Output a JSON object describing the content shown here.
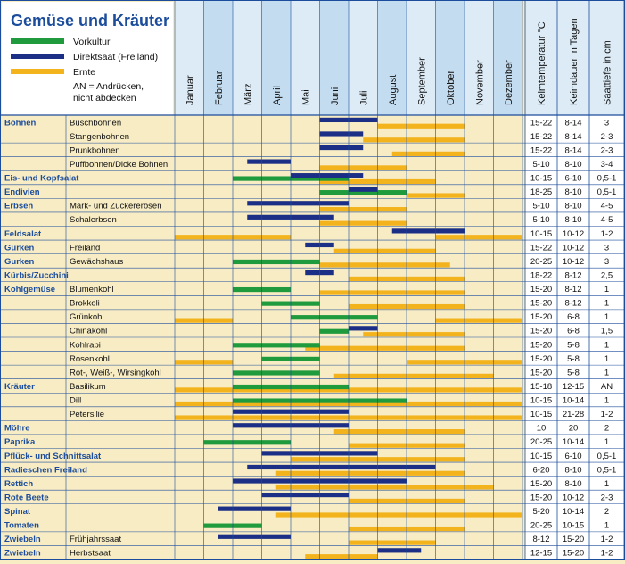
{
  "chart_data": {
    "type": "gantt",
    "title": "Gemüse und Kräuter",
    "legend": [
      {
        "key": "vor",
        "label": "Vorkultur",
        "color": "#1f9a3c"
      },
      {
        "key": "dir",
        "label": "Direktsaat (Freiland)",
        "color": "#1c2f86"
      },
      {
        "key": "ern",
        "label": "Ernte",
        "color": "#f3b31c"
      }
    ],
    "legend_note": [
      "AN = Andrücken,",
      "nicht abdecken"
    ],
    "months": [
      "Januar",
      "Februar",
      "März",
      "April",
      "Mai",
      "Juni",
      "Juli",
      "August",
      "September",
      "Oktober",
      "November",
      "Dezember"
    ],
    "value_columns": [
      "Keimtemperatur °C",
      "Keimdauer in Tagen",
      "Saattiefe in cm"
    ],
    "rows": [
      {
        "group": "Bohnen",
        "item": "Buschbohnen",
        "keimtemp": "15-22",
        "keimdauer": "8-14",
        "saattiefe": "3",
        "bars": {
          "dir": [
            [
              5,
              7
            ]
          ],
          "ern": [
            [
              7,
              10
            ]
          ]
        }
      },
      {
        "group": "",
        "item": "Stangenbohnen",
        "keimtemp": "15-22",
        "keimdauer": "8-14",
        "saattiefe": "2-3",
        "bars": {
          "dir": [
            [
              5,
              6.5
            ]
          ],
          "ern": [
            [
              6.5,
              10
            ]
          ]
        }
      },
      {
        "group": "",
        "item": "Prunkbohnen",
        "keimtemp": "15-22",
        "keimdauer": "8-14",
        "saattiefe": "2-3",
        "bars": {
          "dir": [
            [
              5,
              6.5
            ]
          ],
          "ern": [
            [
              7.5,
              10
            ]
          ]
        }
      },
      {
        "group": "",
        "item": "Puffbohnen/Dicke Bohnen",
        "keimtemp": "5-10",
        "keimdauer": "8-10",
        "saattiefe": "3-4",
        "bars": {
          "dir": [
            [
              2.5,
              4
            ]
          ],
          "ern": [
            [
              5,
              8
            ]
          ]
        }
      },
      {
        "group": "Eis- und Kopfsalat",
        "item": "",
        "keimtemp": "10-15",
        "keimdauer": "6-10",
        "saattiefe": "0,5-1",
        "bars": {
          "vor": [
            [
              2,
              6
            ]
          ],
          "dir": [
            [
              4,
              6.5
            ]
          ],
          "ern": [
            [
              5,
              9
            ]
          ]
        }
      },
      {
        "group": "Endivien",
        "item": "",
        "keimtemp": "18-25",
        "keimdauer": "8-10",
        "saattiefe": "0,5-1",
        "bars": {
          "vor": [
            [
              5,
              8
            ]
          ],
          "dir": [
            [
              6,
              7
            ]
          ],
          "ern": [
            [
              8,
              10
            ]
          ]
        }
      },
      {
        "group": "Erbsen",
        "item": "Mark- und Zuckererbsen",
        "keimtemp": "5-10",
        "keimdauer": "8-10",
        "saattiefe": "4-5",
        "bars": {
          "dir": [
            [
              2.5,
              6
            ]
          ],
          "ern": [
            [
              5,
              8
            ]
          ]
        }
      },
      {
        "group": "",
        "item": "Schalerbsen",
        "keimtemp": "5-10",
        "keimdauer": "8-10",
        "saattiefe": "4-5",
        "bars": {
          "dir": [
            [
              2.5,
              5.5
            ]
          ],
          "ern": [
            [
              5,
              8
            ]
          ]
        }
      },
      {
        "group": "Feldsalat",
        "item": "",
        "keimtemp": "10-15",
        "keimdauer": "10-12",
        "saattiefe": "1-2",
        "bars": {
          "dir": [
            [
              7.5,
              10
            ]
          ],
          "ern": [
            [
              0,
              4
            ],
            [
              9,
              12
            ]
          ]
        }
      },
      {
        "group": "Gurken",
        "item": "Freiland",
        "keimtemp": "15-22",
        "keimdauer": "10-12",
        "saattiefe": "3",
        "bars": {
          "dir": [
            [
              4.5,
              5.5
            ]
          ],
          "ern": [
            [
              5.5,
              9
            ]
          ]
        }
      },
      {
        "group": "Gurken",
        "item": "Gewächshaus",
        "keimtemp": "20-25",
        "keimdauer": "10-12",
        "saattiefe": "3",
        "bars": {
          "vor": [
            [
              2,
              5
            ]
          ],
          "ern": [
            [
              5,
              9.5
            ]
          ]
        }
      },
      {
        "group": "Kürbis/Zucchini",
        "item": "",
        "keimtemp": "18-22",
        "keimdauer": "8-12",
        "saattiefe": "2,5",
        "bars": {
          "dir": [
            [
              4.5,
              5.5
            ]
          ],
          "ern": [
            [
              6,
              10
            ]
          ]
        }
      },
      {
        "group": "Kohlgemüse",
        "item": "Blumenkohl",
        "keimtemp": "15-20",
        "keimdauer": "8-12",
        "saattiefe": "1",
        "bars": {
          "vor": [
            [
              2,
              4
            ]
          ],
          "ern": [
            [
              5,
              10
            ]
          ]
        }
      },
      {
        "group": "",
        "item": "Brokkoli",
        "keimtemp": "15-20",
        "keimdauer": "8-12",
        "saattiefe": "1",
        "bars": {
          "vor": [
            [
              3,
              5
            ]
          ],
          "ern": [
            [
              6,
              10
            ]
          ]
        }
      },
      {
        "group": "",
        "item": "Grünkohl",
        "keimtemp": "15-20",
        "keimdauer": "6-8",
        "saattiefe": "1",
        "bars": {
          "vor": [
            [
              4,
              7
            ]
          ],
          "ern": [
            [
              0,
              2
            ],
            [
              9,
              12
            ]
          ]
        }
      },
      {
        "group": "",
        "item": "Chinakohl",
        "keimtemp": "15-20",
        "keimdauer": "6-8",
        "saattiefe": "1,5",
        "bars": {
          "vor": [
            [
              5,
              6
            ]
          ],
          "dir": [
            [
              6,
              7
            ]
          ],
          "ern": [
            [
              6.5,
              10
            ]
          ]
        }
      },
      {
        "group": "",
        "item": "Kohlrabi",
        "keimtemp": "15-20",
        "keimdauer": "5-8",
        "saattiefe": "1",
        "bars": {
          "vor": [
            [
              2,
              5
            ]
          ],
          "ern": [
            [
              4.5,
              10
            ]
          ]
        }
      },
      {
        "group": "",
        "item": "Rosenkohl",
        "keimtemp": "15-20",
        "keimdauer": "5-8",
        "saattiefe": "1",
        "bars": {
          "vor": [
            [
              3,
              5
            ]
          ],
          "ern": [
            [
              0,
              2
            ],
            [
              8,
              12
            ]
          ]
        }
      },
      {
        "group": "",
        "item": "Rot-, Weiß-, Wirsingkohl",
        "keimtemp": "15-20",
        "keimdauer": "5-8",
        "saattiefe": "1",
        "bars": {
          "vor": [
            [
              2,
              5
            ]
          ],
          "ern": [
            [
              5.5,
              11
            ]
          ]
        }
      },
      {
        "group": "Kräuter",
        "item": "Basilikum",
        "keimtemp": "15-18",
        "keimdauer": "12-15",
        "saattiefe": "AN",
        "bars": {
          "vor": [
            [
              2,
              6
            ]
          ],
          "ern": [
            [
              0,
              12
            ]
          ]
        }
      },
      {
        "group": "",
        "item": "Dill",
        "keimtemp": "10-15",
        "keimdauer": "10-14",
        "saattiefe": "1",
        "bars": {
          "vor": [
            [
              2,
              8
            ]
          ],
          "ern": [
            [
              0,
              12
            ]
          ]
        }
      },
      {
        "group": "",
        "item": "Petersilie",
        "keimtemp": "10-15",
        "keimdauer": "21-28",
        "saattiefe": "1-2",
        "bars": {
          "dir": [
            [
              2,
              6
            ]
          ],
          "ern": [
            [
              0,
              12
            ]
          ]
        }
      },
      {
        "group": "Möhre",
        "item": "",
        "keimtemp": "10",
        "keimdauer": "20",
        "saattiefe": "2",
        "bars": {
          "dir": [
            [
              2,
              6
            ]
          ],
          "ern": [
            [
              5.5,
              10
            ]
          ]
        }
      },
      {
        "group": "Paprika",
        "item": "",
        "keimtemp": "20-25",
        "keimdauer": "10-14",
        "saattiefe": "1",
        "bars": {
          "vor": [
            [
              1,
              4
            ]
          ],
          "ern": [
            [
              6,
              10
            ]
          ]
        }
      },
      {
        "group": "Pflück- und Schnittsalat",
        "item": "",
        "keimtemp": "10-15",
        "keimdauer": "6-10",
        "saattiefe": "0,5-1",
        "bars": {
          "dir": [
            [
              3,
              7
            ]
          ],
          "ern": [
            [
              4,
              10
            ]
          ]
        }
      },
      {
        "group": "Radieschen Freiland",
        "item": "",
        "keimtemp": "6-20",
        "keimdauer": "8-10",
        "saattiefe": "0,5-1",
        "bars": {
          "dir": [
            [
              2.5,
              9
            ]
          ],
          "ern": [
            [
              3.5,
              10
            ]
          ]
        }
      },
      {
        "group": "Rettich",
        "item": "",
        "keimtemp": "15-20",
        "keimdauer": "8-10",
        "saattiefe": "1",
        "bars": {
          "dir": [
            [
              2,
              8
            ]
          ],
          "ern": [
            [
              3.5,
              11
            ]
          ]
        }
      },
      {
        "group": "Rote Beete",
        "item": "",
        "keimtemp": "15-20",
        "keimdauer": "10-12",
        "saattiefe": "2-3",
        "bars": {
          "dir": [
            [
              3,
              6
            ]
          ],
          "ern": [
            [
              6,
              10
            ]
          ]
        }
      },
      {
        "group": "Spinat",
        "item": "",
        "keimtemp": "5-20",
        "keimdauer": "10-14",
        "saattiefe": "2",
        "bars": {
          "dir": [
            [
              1.5,
              4
            ]
          ],
          "ern": [
            [
              3.5,
              12
            ]
          ]
        }
      },
      {
        "group": "Tomaten",
        "item": "",
        "keimtemp": "20-25",
        "keimdauer": "10-15",
        "saattiefe": "1",
        "bars": {
          "vor": [
            [
              1,
              3
            ]
          ],
          "ern": [
            [
              6,
              10
            ]
          ]
        }
      },
      {
        "group": "Zwiebeln",
        "item": "Frühjahrssaat",
        "keimtemp": "8-12",
        "keimdauer": "15-20",
        "saattiefe": "1-2",
        "bars": {
          "dir": [
            [
              1.5,
              4
            ]
          ],
          "ern": [
            [
              6,
              9
            ]
          ]
        }
      },
      {
        "group": "Zwiebeln",
        "item": "Herbstsaat",
        "keimtemp": "12-15",
        "keimdauer": "15-20",
        "saattiefe": "1-2",
        "bars": {
          "dir": [
            [
              7,
              8.5
            ]
          ],
          "ern": [
            [
              4.5,
              7
            ]
          ]
        }
      }
    ]
  }
}
